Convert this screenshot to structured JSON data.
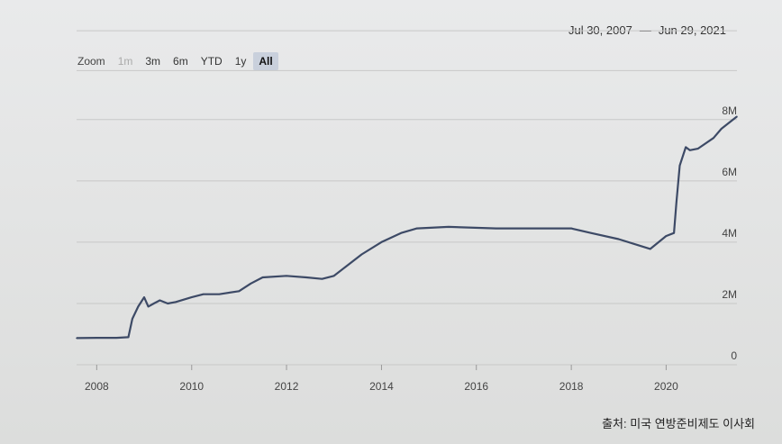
{
  "range_selector": {
    "zoom_label": "Zoom",
    "buttons": [
      {
        "label": "1m",
        "state": "disabled"
      },
      {
        "label": "3m",
        "state": "normal"
      },
      {
        "label": "6m",
        "state": "normal"
      },
      {
        "label": "YTD",
        "state": "normal"
      },
      {
        "label": "1y",
        "state": "normal"
      },
      {
        "label": "All",
        "state": "active"
      }
    ]
  },
  "date_range": {
    "from": "Jul 30, 2007",
    "separator": "—",
    "to": "Jun 29, 2021"
  },
  "source": "출처: 미국 연방준비제도 이사회",
  "colors": {
    "line": "#3d4a66",
    "grid": "#c8c8c8",
    "axis_text": "#444444",
    "active_button": "#c9d0dc"
  },
  "chart_data": {
    "type": "line",
    "title": "",
    "xlabel": "",
    "ylabel": "",
    "x_ticks": [
      "2008",
      "2010",
      "2012",
      "2014",
      "2016",
      "2018",
      "2020"
    ],
    "y_ticks": [
      "0",
      "2M",
      "4M",
      "6M",
      "8M"
    ],
    "xlim": [
      "2007-07-30",
      "2021-06-29"
    ],
    "ylim": [
      0,
      8.2
    ],
    "y_unit": "millions",
    "grid": true,
    "series": [
      {
        "name": "",
        "points": [
          [
            "2007-07-30",
            0.87
          ],
          [
            "2008-01-01",
            0.88
          ],
          [
            "2008-06-01",
            0.88
          ],
          [
            "2008-09-01",
            0.9
          ],
          [
            "2008-10-01",
            1.5
          ],
          [
            "2008-11-15",
            1.9
          ],
          [
            "2008-12-31",
            2.2
          ],
          [
            "2009-02-01",
            1.9
          ],
          [
            "2009-03-15",
            2.0
          ],
          [
            "2009-05-01",
            2.1
          ],
          [
            "2009-07-01",
            2.0
          ],
          [
            "2009-09-01",
            2.05
          ],
          [
            "2009-12-31",
            2.2
          ],
          [
            "2010-04-01",
            2.3
          ],
          [
            "2010-08-01",
            2.3
          ],
          [
            "2010-12-31",
            2.4
          ],
          [
            "2011-04-01",
            2.65
          ],
          [
            "2011-07-01",
            2.85
          ],
          [
            "2011-12-31",
            2.9
          ],
          [
            "2012-06-01",
            2.85
          ],
          [
            "2012-10-01",
            2.8
          ],
          [
            "2012-12-31",
            2.9
          ],
          [
            "2013-04-01",
            3.2
          ],
          [
            "2013-08-01",
            3.6
          ],
          [
            "2013-12-31",
            4.0
          ],
          [
            "2014-06-01",
            4.3
          ],
          [
            "2014-10-01",
            4.45
          ],
          [
            "2015-06-01",
            4.5
          ],
          [
            "2016-06-01",
            4.45
          ],
          [
            "2017-06-01",
            4.45
          ],
          [
            "2017-12-31",
            4.45
          ],
          [
            "2018-06-01",
            4.3
          ],
          [
            "2018-12-31",
            4.1
          ],
          [
            "2019-06-01",
            3.9
          ],
          [
            "2019-09-01",
            3.78
          ],
          [
            "2019-12-31",
            4.2
          ],
          [
            "2020-03-01",
            4.3
          ],
          [
            "2020-03-20",
            5.3
          ],
          [
            "2020-04-15",
            6.5
          ],
          [
            "2020-05-31",
            7.1
          ],
          [
            "2020-07-01",
            7.0
          ],
          [
            "2020-09-01",
            7.05
          ],
          [
            "2020-12-31",
            7.4
          ],
          [
            "2021-03-01",
            7.7
          ],
          [
            "2021-06-29",
            8.1
          ]
        ]
      }
    ]
  }
}
